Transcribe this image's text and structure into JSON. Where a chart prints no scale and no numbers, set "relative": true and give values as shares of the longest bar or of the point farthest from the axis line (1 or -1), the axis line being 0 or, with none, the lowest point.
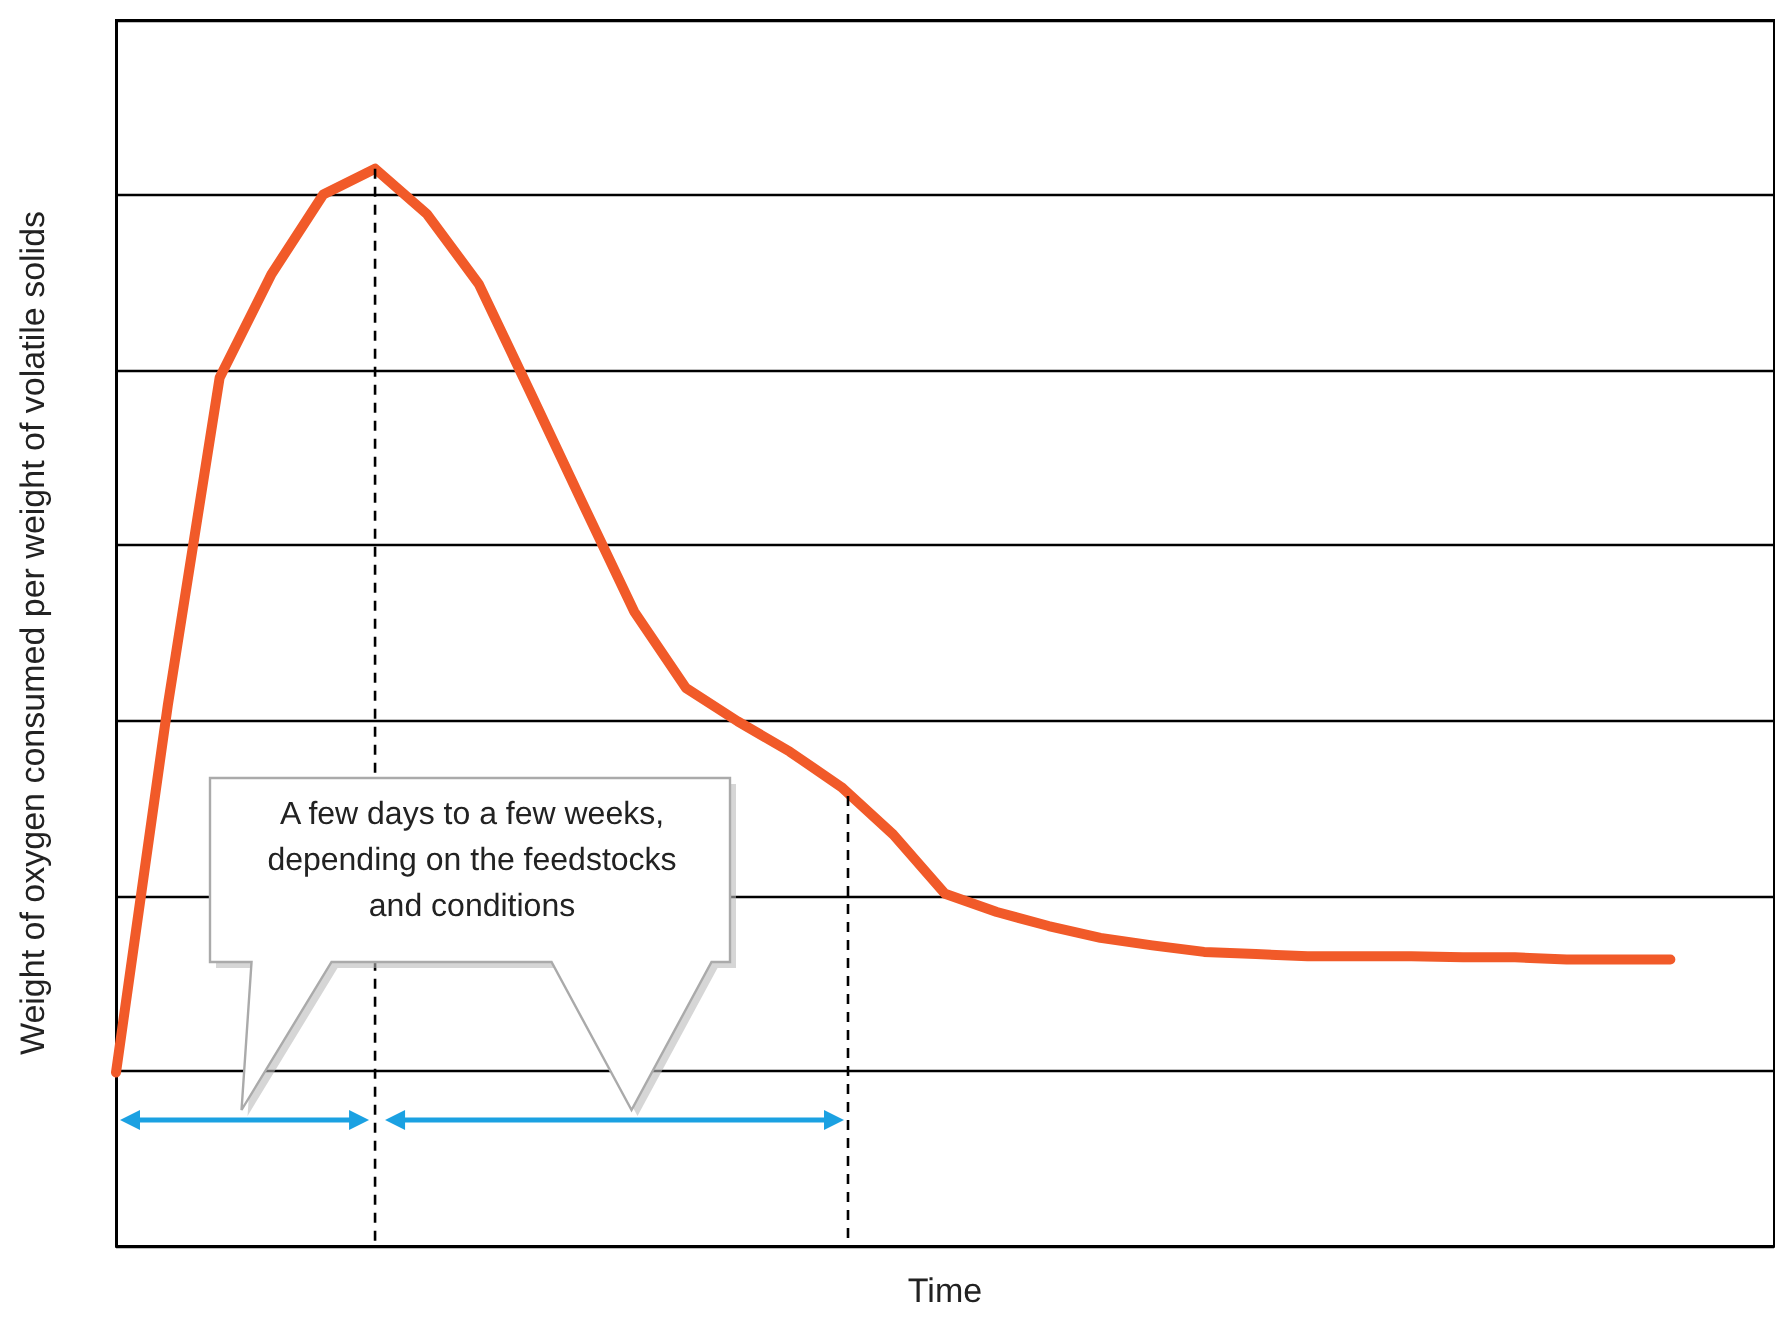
{
  "chart_data": {
    "type": "line",
    "relative": true,
    "xlabel": "Time",
    "ylabel": "Weight of oxygen consumed per weight of volatile solids",
    "categories": [
      null,
      null,
      null,
      null,
      null,
      null,
      null,
      null,
      null,
      null,
      null,
      null,
      null,
      null,
      null,
      null,
      null,
      null,
      null,
      null,
      null,
      null,
      null,
      null,
      null,
      null,
      null,
      null,
      null,
      null,
      null,
      null,
      null
    ],
    "series": [
      {
        "color": "#f15a29",
        "values": [
          0.161,
          0.502,
          0.806,
          0.902,
          0.976,
          1,
          0.958,
          0.893,
          0.792,
          0.69,
          0.589,
          0.518,
          0.487,
          0.459,
          0.426,
          0.382,
          0.327,
          0.31,
          0.297,
          0.286,
          0.279,
          0.273,
          0.271,
          0.269,
          0.269,
          0.269,
          0.268,
          0.268,
          0.266,
          0.266,
          0.266,
          null,
          null
        ]
      }
    ],
    "annotations": [
      "A few days to a few weeks, depending on the feedstocks and conditions"
    ],
    "grid": "y",
    "marker": "none",
    "line_style": "solid"
  }
}
